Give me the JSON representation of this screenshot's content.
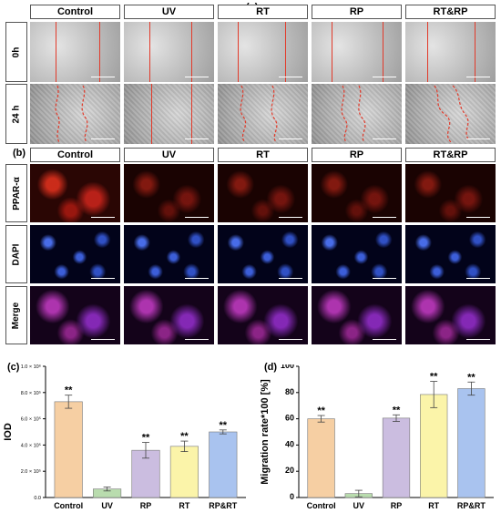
{
  "panel_letters": {
    "a": "(a)",
    "b": "(b)",
    "c": "(c)",
    "d": "(d)"
  },
  "panel_a": {
    "columns": [
      "Control",
      "UV",
      "RT",
      "RP",
      "RT&RP"
    ],
    "rows": [
      "0h",
      "24 h"
    ]
  },
  "panel_b": {
    "columns": [
      "Control",
      "UV",
      "RT",
      "RP",
      "RT&RP"
    ],
    "rows": [
      "PPAR-α",
      "DAPI",
      "Merge"
    ]
  },
  "colors": {
    "control": "#f6cfa3",
    "uv": "#b9dcae",
    "rp": "#cbbde0",
    "rt": "#fbf4a9",
    "rprt": "#a9c3ef",
    "scratch_line": "#e23a2a"
  },
  "chart_data": [
    {
      "type": "bar",
      "panel": "(c)",
      "categories": [
        "Control",
        "UV",
        "RP",
        "RT",
        "RP&RT"
      ],
      "values": [
        730000,
        65000,
        360000,
        390000,
        500000
      ],
      "errors": [
        50000,
        15000,
        60000,
        40000,
        15000
      ],
      "annotations": [
        "**",
        "",
        "**",
        "**",
        "**"
      ],
      "ylabel": "IOD",
      "ylim": [
        0,
        1000000
      ],
      "yticks": [
        0,
        200000,
        400000,
        600000,
        800000,
        1000000
      ],
      "ytick_labels": [
        "0.0",
        "2.0 × 10⁵",
        "4.0 × 10⁵",
        "6.0 × 10⁵",
        "8.0 × 10⁵",
        "1.0 × 10⁶"
      ]
    },
    {
      "type": "bar",
      "panel": "(d)",
      "categories": [
        "Control",
        "UV",
        "RP",
        "RT",
        "RP&RT"
      ],
      "values": [
        60,
        3,
        60.5,
        78.5,
        83
      ],
      "errors": [
        2.5,
        2.5,
        2.5,
        10,
        5
      ],
      "annotations": [
        "**",
        "",
        "**",
        "**",
        "**"
      ],
      "ylabel": "Migration rate*100  [%]",
      "ylim": [
        0,
        100
      ],
      "yticks": [
        0,
        20,
        40,
        60,
        80,
        100
      ],
      "ytick_labels": [
        "0",
        "20",
        "40",
        "60",
        "80",
        "100"
      ]
    }
  ]
}
